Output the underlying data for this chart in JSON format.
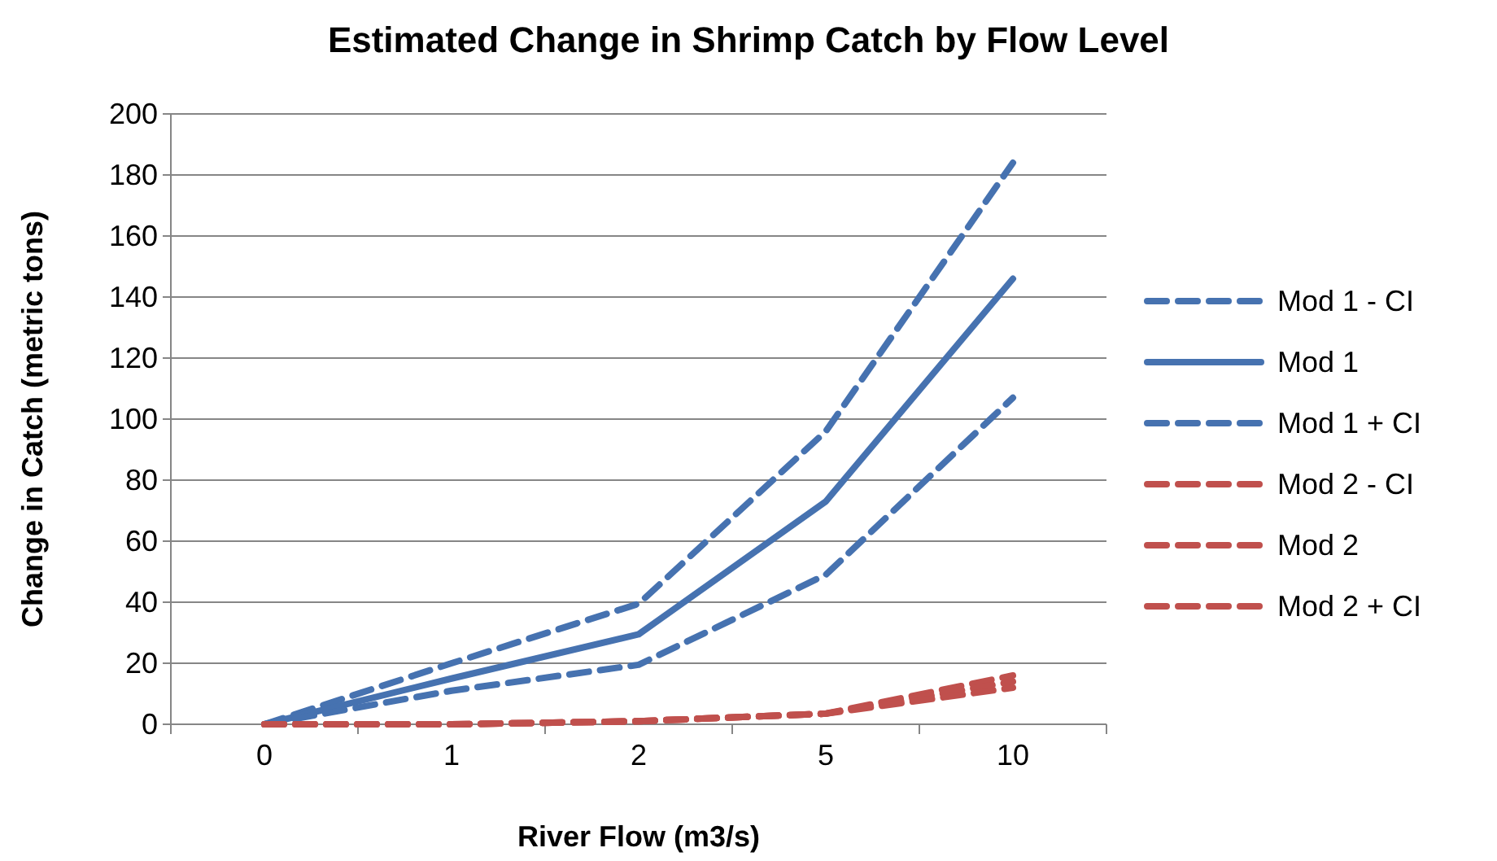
{
  "chart_data": {
    "type": "line",
    "title": "Estimated Change in Shrimp Catch by Flow Level",
    "xlabel": "River Flow (m3/s)",
    "ylabel": "Change in Catch (metric tons)",
    "categories": [
      "0",
      "1",
      "2",
      "5",
      "10"
    ],
    "series": [
      {
        "name": "Mod 1 - CI",
        "color": "#4672b0",
        "line_style": "dashed",
        "values": [
          0,
          20,
          39.5,
          96,
          184
        ]
      },
      {
        "name": "Mod 1",
        "color": "#4672b0",
        "line_style": "solid",
        "values": [
          0,
          15,
          29.5,
          73,
          146
        ]
      },
      {
        "name": "Mod 1 + CI",
        "color": "#4672b0",
        "line_style": "dashed",
        "values": [
          0,
          11,
          19.5,
          49,
          107
        ]
      },
      {
        "name": "Mod 2 - CI",
        "color": "#c0504d",
        "line_style": "dashed",
        "values": [
          0,
          0,
          1,
          3.5,
          16
        ]
      },
      {
        "name": "Mod 2",
        "color": "#c0504d",
        "line_style": "dashed",
        "values": [
          0,
          0,
          1,
          3.5,
          14
        ]
      },
      {
        "name": "Mod 2 + CI",
        "color": "#c0504d",
        "line_style": "dashed",
        "values": [
          0,
          0,
          1,
          3.5,
          12
        ]
      }
    ],
    "ylim": [
      0,
      200
    ],
    "yticks": [
      0,
      20,
      40,
      60,
      80,
      100,
      120,
      140,
      160,
      180,
      200
    ],
    "grid": "y",
    "legend": "right",
    "marker": "none"
  }
}
